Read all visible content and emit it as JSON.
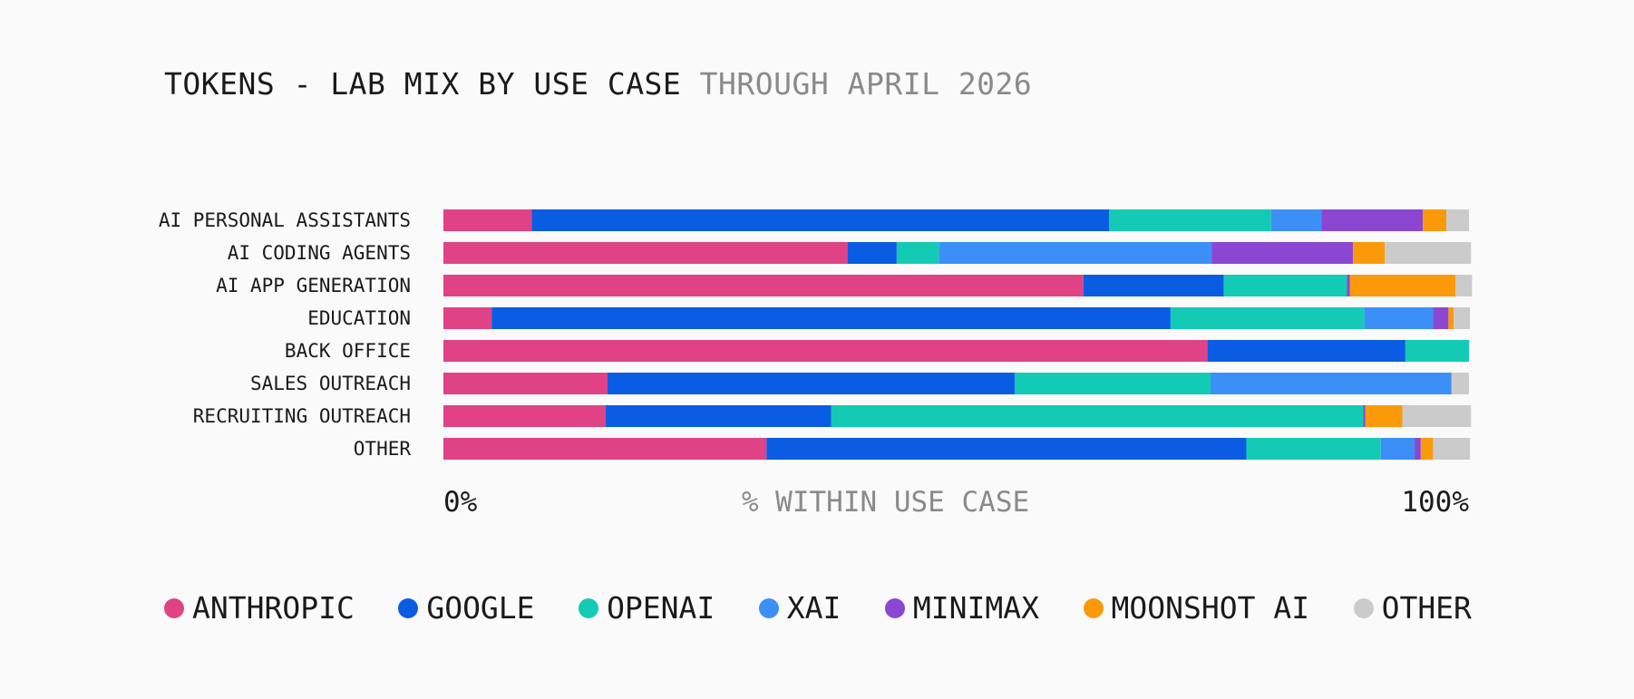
{
  "title": "TOKENS - LAB MIX BY USE CASE",
  "subtitle": "THROUGH APRIL 2026",
  "chart_data": {
    "type": "bar",
    "orientation": "horizontal",
    "stacked": true,
    "normalized": true,
    "xlabel": "% WITHIN USE CASE",
    "xlim": [
      0,
      100
    ],
    "x_tick_labels": [
      "0%",
      "100%"
    ],
    "categories": [
      "AI PERSONAL ASSISTANTS",
      "AI CODING AGENTS",
      "AI APP GENERATION",
      "EDUCATION",
      "BACK OFFICE",
      "SALES OUTREACH",
      "RECRUITING OUTREACH",
      "OTHER"
    ],
    "series": [
      {
        "name": "ANTHROPIC",
        "color": "#e04385",
        "values": [
          8.6,
          39.4,
          62.4,
          4.7,
          74.5,
          16.0,
          15.8,
          31.5
        ]
      },
      {
        "name": "GOOGLE",
        "color": "#0a5ce3",
        "values": [
          56.3,
          4.8,
          13.7,
          66.2,
          19.3,
          39.7,
          22.0,
          46.8
        ]
      },
      {
        "name": "OPENAI",
        "color": "#13cbb5",
        "values": [
          15.8,
          4.1,
          12.0,
          18.9,
          6.2,
          19.1,
          51.9,
          13.1
        ]
      },
      {
        "name": "XAI",
        "color": "#3d8ff8",
        "values": [
          4.9,
          26.6,
          0.0,
          6.7,
          0.0,
          23.5,
          0.0,
          3.3
        ]
      },
      {
        "name": "MINIMAX",
        "color": "#8b47d1",
        "values": [
          9.9,
          13.8,
          0.3,
          1.5,
          0.0,
          0.0,
          0.2,
          0.6
        ]
      },
      {
        "name": "MOONSHOT AI",
        "color": "#fa9a0b",
        "values": [
          2.3,
          3.1,
          10.3,
          0.5,
          0.0,
          0.0,
          3.6,
          1.2
        ]
      },
      {
        "name": "OTHER",
        "color": "#cbcbcb",
        "values": [
          2.2,
          8.4,
          1.6,
          1.6,
          0.0,
          1.7,
          6.7,
          3.6
        ]
      }
    ],
    "grid": false,
    "legend_position": "bottom"
  }
}
